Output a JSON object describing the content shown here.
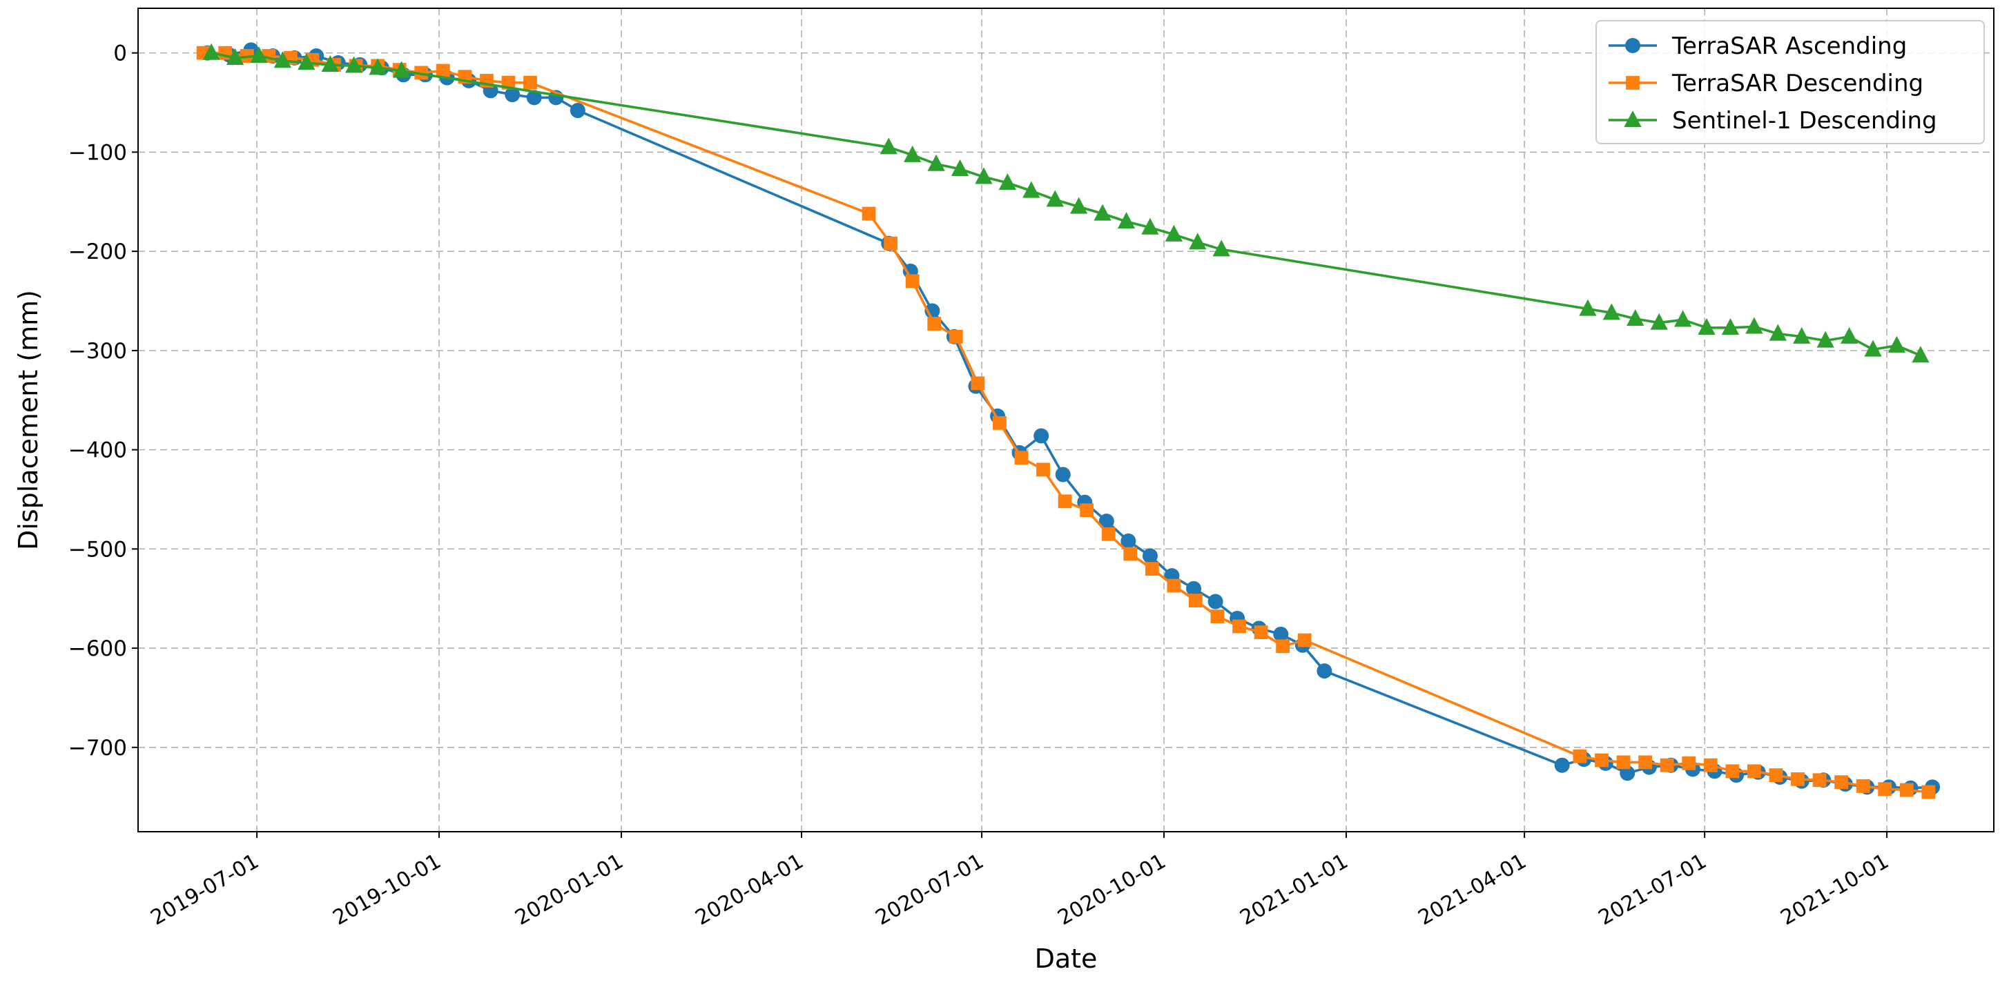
{
  "chart_data": {
    "type": "line",
    "xlabel": "Date",
    "ylabel": "Displacement (mm)",
    "xlim": [
      "2019-05-02",
      "2021-11-24"
    ],
    "ylim": [
      -785,
      45
    ],
    "grid": true,
    "legend_position": "top-right",
    "x_ticks": [
      "2019-07-01",
      "2019-10-01",
      "2020-01-01",
      "2020-04-01",
      "2020-07-01",
      "2020-10-01",
      "2021-01-01",
      "2021-04-01",
      "2021-07-01",
      "2021-10-01"
    ],
    "y_ticks": [
      0,
      -100,
      -200,
      -300,
      -400,
      -500,
      -600,
      -700
    ],
    "y_tick_labels": [
      "0",
      "−100",
      "−200",
      "−300",
      "−400",
      "−500",
      "−600",
      "−700"
    ],
    "series": [
      {
        "name": "TerraSAR Ascending",
        "color": "#1f77b4",
        "marker": "circle",
        "points": [
          [
            "2019-06-06",
            0
          ],
          [
            "2019-06-17",
            -2
          ],
          [
            "2019-06-28",
            3
          ],
          [
            "2019-07-09",
            -3
          ],
          [
            "2019-07-20",
            -5
          ],
          [
            "2019-07-31",
            -3
          ],
          [
            "2019-08-11",
            -10
          ],
          [
            "2019-08-22",
            -12
          ],
          [
            "2019-09-02",
            -15
          ],
          [
            "2019-09-13",
            -22
          ],
          [
            "2019-09-24",
            -22
          ],
          [
            "2019-10-05",
            -25
          ],
          [
            "2019-10-16",
            -28
          ],
          [
            "2019-10-27",
            -38
          ],
          [
            "2019-11-07",
            -42
          ],
          [
            "2019-11-18",
            -45
          ],
          [
            "2019-11-29",
            -45
          ],
          [
            "2019-12-10",
            -58
          ],
          [
            "2020-05-15",
            -192
          ],
          [
            "2020-05-26",
            -220
          ],
          [
            "2020-06-06",
            -260
          ],
          [
            "2020-06-17",
            -286
          ],
          [
            "2020-06-28",
            -336
          ],
          [
            "2020-07-09",
            -366
          ],
          [
            "2020-07-20",
            -403
          ],
          [
            "2020-07-31",
            -386
          ],
          [
            "2020-08-11",
            -425
          ],
          [
            "2020-08-22",
            -453
          ],
          [
            "2020-09-02",
            -472
          ],
          [
            "2020-09-13",
            -492
          ],
          [
            "2020-09-24",
            -507
          ],
          [
            "2020-10-05",
            -527
          ],
          [
            "2020-10-16",
            -540
          ],
          [
            "2020-10-27",
            -553
          ],
          [
            "2020-11-07",
            -570
          ],
          [
            "2020-11-18",
            -580
          ],
          [
            "2020-11-29",
            -586
          ],
          [
            "2020-12-10",
            -597
          ],
          [
            "2020-12-21",
            -623
          ],
          [
            "2021-04-20",
            -718
          ],
          [
            "2021-05-01",
            -712
          ],
          [
            "2021-05-12",
            -716
          ],
          [
            "2021-05-23",
            -726
          ],
          [
            "2021-06-03",
            -720
          ],
          [
            "2021-06-14",
            -718
          ],
          [
            "2021-06-25",
            -722
          ],
          [
            "2021-07-06",
            -724
          ],
          [
            "2021-07-17",
            -728
          ],
          [
            "2021-07-28",
            -725
          ],
          [
            "2021-08-08",
            -730
          ],
          [
            "2021-08-19",
            -734
          ],
          [
            "2021-08-30",
            -733
          ],
          [
            "2021-09-10",
            -737
          ],
          [
            "2021-09-21",
            -740
          ],
          [
            "2021-10-02",
            -740
          ],
          [
            "2021-10-13",
            -741
          ],
          [
            "2021-10-24",
            -740
          ]
        ]
      },
      {
        "name": "TerraSAR Descending",
        "color": "#ff7f0e",
        "marker": "square",
        "points": [
          [
            "2019-06-04",
            0
          ],
          [
            "2019-06-15",
            0
          ],
          [
            "2019-06-26",
            -3
          ],
          [
            "2019-07-07",
            -3
          ],
          [
            "2019-07-18",
            -5
          ],
          [
            "2019-07-29",
            -7
          ],
          [
            "2019-08-09",
            -12
          ],
          [
            "2019-08-20",
            -13
          ],
          [
            "2019-08-31",
            -13
          ],
          [
            "2019-09-11",
            -17
          ],
          [
            "2019-09-22",
            -20
          ],
          [
            "2019-10-03",
            -18
          ],
          [
            "2019-10-14",
            -24
          ],
          [
            "2019-10-25",
            -28
          ],
          [
            "2019-11-05",
            -30
          ],
          [
            "2019-11-16",
            -30
          ],
          [
            "2020-05-05",
            -162
          ],
          [
            "2020-05-16",
            -192
          ],
          [
            "2020-05-27",
            -230
          ],
          [
            "2020-06-07",
            -273
          ],
          [
            "2020-06-18",
            -286
          ],
          [
            "2020-06-29",
            -333
          ],
          [
            "2020-07-10",
            -373
          ],
          [
            "2020-07-21",
            -408
          ],
          [
            "2020-08-01",
            -420
          ],
          [
            "2020-08-12",
            -452
          ],
          [
            "2020-08-23",
            -461
          ],
          [
            "2020-09-03",
            -485
          ],
          [
            "2020-09-14",
            -505
          ],
          [
            "2020-09-25",
            -520
          ],
          [
            "2020-10-06",
            -537
          ],
          [
            "2020-10-17",
            -552
          ],
          [
            "2020-10-28",
            -568
          ],
          [
            "2020-11-08",
            -578
          ],
          [
            "2020-11-19",
            -584
          ],
          [
            "2020-11-30",
            -598
          ],
          [
            "2020-12-11",
            -592
          ],
          [
            "2021-04-29",
            -709
          ],
          [
            "2021-05-10",
            -713
          ],
          [
            "2021-05-21",
            -715
          ],
          [
            "2021-06-01",
            -715
          ],
          [
            "2021-06-12",
            -718
          ],
          [
            "2021-06-23",
            -716
          ],
          [
            "2021-07-04",
            -718
          ],
          [
            "2021-07-15",
            -724
          ],
          [
            "2021-07-26",
            -724
          ],
          [
            "2021-08-06",
            -728
          ],
          [
            "2021-08-17",
            -732
          ],
          [
            "2021-08-28",
            -733
          ],
          [
            "2021-09-08",
            -735
          ],
          [
            "2021-09-19",
            -739
          ],
          [
            "2021-09-30",
            -742
          ],
          [
            "2021-10-11",
            -743
          ],
          [
            "2021-10-22",
            -745
          ]
        ]
      },
      {
        "name": "Sentinel-1 Descending",
        "color": "#2ca02c",
        "marker": "triangle",
        "points": [
          [
            "2019-06-08",
            0
          ],
          [
            "2019-06-20",
            -5
          ],
          [
            "2019-07-02",
            -3
          ],
          [
            "2019-07-14",
            -8
          ],
          [
            "2019-07-26",
            -10
          ],
          [
            "2019-08-07",
            -12
          ],
          [
            "2019-08-19",
            -13
          ],
          [
            "2019-08-31",
            -15
          ],
          [
            "2019-09-12",
            -18
          ],
          [
            "2020-05-15",
            -95
          ],
          [
            "2020-05-27",
            -103
          ],
          [
            "2020-06-08",
            -112
          ],
          [
            "2020-06-20",
            -117
          ],
          [
            "2020-07-02",
            -125
          ],
          [
            "2020-07-14",
            -131
          ],
          [
            "2020-07-26",
            -139
          ],
          [
            "2020-08-07",
            -148
          ],
          [
            "2020-08-19",
            -155
          ],
          [
            "2020-08-31",
            -162
          ],
          [
            "2020-09-12",
            -170
          ],
          [
            "2020-09-24",
            -176
          ],
          [
            "2020-10-06",
            -183
          ],
          [
            "2020-10-18",
            -191
          ],
          [
            "2020-10-30",
            -198
          ],
          [
            "2021-05-03",
            -258
          ],
          [
            "2021-05-15",
            -262
          ],
          [
            "2021-05-27",
            -268
          ],
          [
            "2021-06-08",
            -272
          ],
          [
            "2021-06-20",
            -269
          ],
          [
            "2021-07-02",
            -277
          ],
          [
            "2021-07-14",
            -277
          ],
          [
            "2021-07-26",
            -276
          ],
          [
            "2021-08-07",
            -283
          ],
          [
            "2021-08-19",
            -286
          ],
          [
            "2021-08-31",
            -290
          ],
          [
            "2021-09-12",
            -286
          ],
          [
            "2021-09-24",
            -299
          ],
          [
            "2021-10-06",
            -295
          ],
          [
            "2021-10-18",
            -305
          ]
        ]
      }
    ]
  }
}
